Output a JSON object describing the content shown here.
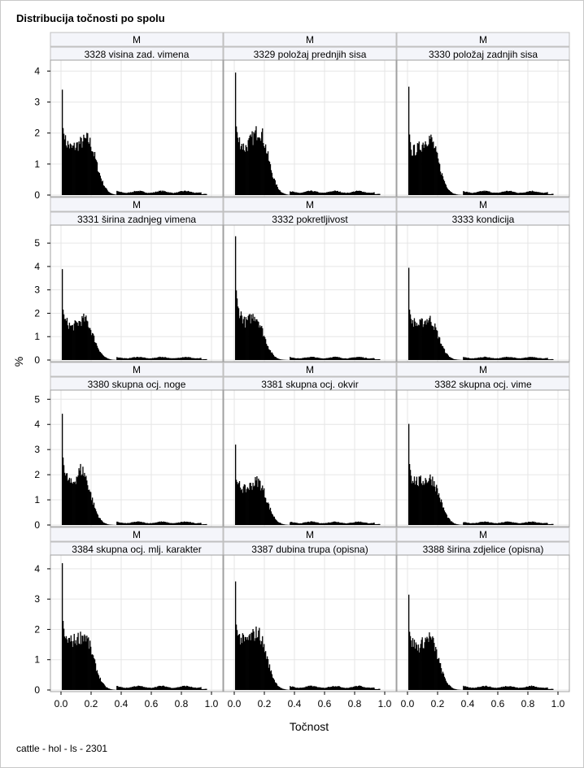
{
  "chart_data": {
    "type": "bar",
    "title": "Distribucija točnosti po spolu",
    "xlabel": "Točnost",
    "ylabel": "%",
    "footnote": "cattle - hol - ls - 2301",
    "xlim": [
      0,
      1
    ],
    "xticks": [
      "0.0",
      "0.2",
      "0.4",
      "0.6",
      "0.8",
      "1.0"
    ],
    "grid": true,
    "rows": [
      {
        "ymax": 4.3,
        "yticks": [
          0,
          1,
          2,
          3,
          4
        ]
      },
      {
        "ymax": 5.7,
        "yticks": [
          0,
          1,
          2,
          3,
          4,
          5
        ]
      },
      {
        "ymax": 5.3,
        "yticks": [
          0,
          1,
          2,
          3,
          4,
          5
        ]
      },
      {
        "ymax": 4.4,
        "yticks": [
          0,
          1,
          2,
          3,
          4
        ]
      }
    ],
    "panels": [
      {
        "sex": "M",
        "trait": "3328 visina zad. vimena",
        "peak": 4.0,
        "plateau": 1.75,
        "valley": 1.5,
        "hump": 1.8,
        "humpAt": 0.17
      },
      {
        "sex": "M",
        "trait": "3329 položaj prednjih sisa",
        "peak": 4.1,
        "plateau": 1.8,
        "valley": 1.5,
        "hump": 2.1,
        "humpAt": 0.16
      },
      {
        "sex": "M",
        "trait": "3330 položaj zadnjih sisa",
        "peak": 3.65,
        "plateau": 1.4,
        "valley": 1.5,
        "hump": 1.85,
        "humpAt": 0.14
      },
      {
        "sex": "M",
        "trait": "3331 širina zadnjeg vimena",
        "peak": 4.0,
        "plateau": 1.7,
        "valley": 1.4,
        "hump": 1.75,
        "humpAt": 0.15
      },
      {
        "sex": "M",
        "trait": "3332 pokretljivost",
        "peak": 5.55,
        "plateau": 2.2,
        "valley": 1.6,
        "hump": 1.9,
        "humpAt": 0.13
      },
      {
        "sex": "M",
        "trait": "3333 kondicija",
        "peak": 4.0,
        "plateau": 1.7,
        "valley": 1.5,
        "hump": 1.75,
        "humpAt": 0.14
      },
      {
        "sex": "M",
        "trait": "3380 skupna ocj. noge",
        "peak": 5.0,
        "plateau": 2.0,
        "valley": 1.6,
        "hump": 2.2,
        "humpAt": 0.13
      },
      {
        "sex": "M",
        "trait": "3381 skupna ocj. okvir",
        "peak": 3.3,
        "plateau": 1.6,
        "valley": 1.4,
        "hump": 1.75,
        "humpAt": 0.15
      },
      {
        "sex": "M",
        "trait": "3382 skupna ocj. vime",
        "peak": 4.5,
        "plateau": 1.9,
        "valley": 1.7,
        "hump": 1.85,
        "humpAt": 0.15
      },
      {
        "sex": "M",
        "trait": "3384 skupna ocj. mlj. karakter",
        "peak": 4.25,
        "plateau": 1.7,
        "valley": 1.6,
        "hump": 1.8,
        "humpAt": 0.15
      },
      {
        "sex": "M",
        "trait": "3387 dubina trupa (opisna)",
        "peak": 4.0,
        "plateau": 1.75,
        "valley": 1.6,
        "hump": 1.9,
        "humpAt": 0.15
      },
      {
        "sex": "M",
        "trait": "3388 širina zdjelice (opisna)",
        "peak": 3.55,
        "plateau": 1.6,
        "valley": 1.4,
        "hump": 1.75,
        "humpAt": 0.14
      }
    ]
  }
}
